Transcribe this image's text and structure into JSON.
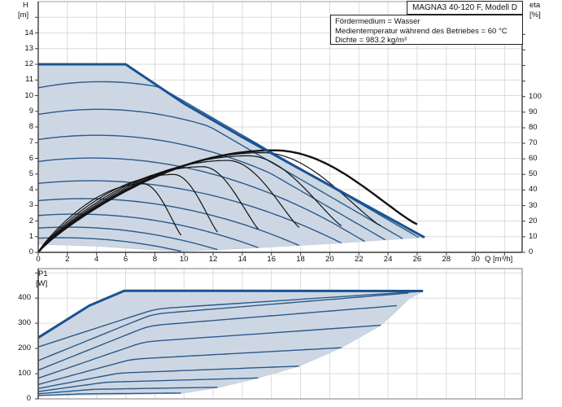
{
  "header": {
    "model_box": "MAGNA3 40-120 F, Modell D",
    "info_lines": [
      "Fördermedium = Wasser",
      "Medientemperatur während des Betriebes = 60 °C",
      "Dichte = 983.2 kg/m³"
    ]
  },
  "labels": {
    "h": "H",
    "h_unit": "[m]",
    "eta": "eta",
    "eta_unit": "[%]",
    "p1": "P1",
    "p1_unit": "[W]",
    "q_axis": "Q [m³/h]"
  },
  "colors": {
    "field_fill": "#cdd7e4",
    "field_edge": "#c2cddc",
    "curve_blue": "#2a5a8a",
    "envelope_blue": "#1a5391",
    "eta_black": "#121212",
    "grid": "#dadada",
    "axis": "#3c3c3c",
    "box_border": "#a0a0a0",
    "text": "#111111"
  },
  "chart_data": [
    {
      "type": "line",
      "title": "Q/H pump curve field with efficiency curves",
      "xlabel": "Q [m³/h]",
      "ylabel": "H [m]",
      "y2label": "eta [%]",
      "x_range": [
        0,
        33.2
      ],
      "y_range": [
        0,
        16
      ],
      "y2_range": [
        0,
        161
      ],
      "grid": true,
      "x_ticks": [
        0,
        2,
        4,
        6,
        8,
        10,
        12,
        14,
        16,
        18,
        20,
        22,
        24,
        26,
        28,
        30
      ],
      "y_ticks": [
        0,
        1,
        2,
        3,
        4,
        5,
        6,
        7,
        8,
        9,
        10,
        11,
        12,
        13,
        14
      ],
      "y2_ticks": [
        0,
        10,
        20,
        30,
        40,
        50,
        60,
        70,
        80,
        90,
        100
      ],
      "max_curve": [
        [
          0,
          12
        ],
        [
          6,
          12
        ],
        [
          10,
          9.5
        ],
        [
          14,
          7.35
        ],
        [
          18,
          5.3
        ],
        [
          22,
          3.25
        ],
        [
          26.5,
          0.95
        ]
      ],
      "field_lower_boundary": [
        [
          0,
          0.52
        ],
        [
          4,
          0.4
        ],
        [
          7,
          0.22
        ],
        [
          9.8,
          0.07
        ],
        [
          12.3,
          0.17
        ],
        [
          15.1,
          0.3
        ],
        [
          17.9,
          0.44
        ],
        [
          20.8,
          0.6
        ],
        [
          23.8,
          0.8
        ],
        [
          26.5,
          0.95
        ]
      ],
      "speed_curves": [
        {
          "h0": 10.5,
          "q_end": 26.1,
          "h_end": 0.95
        },
        {
          "h0": 8.8,
          "q_end": 25.0,
          "h_end": 0.88
        },
        {
          "h0": 7.2,
          "q_end": 23.8,
          "h_end": 0.8
        },
        {
          "h0": 5.8,
          "q_end": 22.4,
          "h_end": 0.7
        },
        {
          "h0": 4.4,
          "q_end": 20.8,
          "h_end": 0.6
        },
        {
          "h0": 3.3,
          "q_end": 17.9,
          "h_end": 0.44
        },
        {
          "h0": 2.35,
          "q_end": 15.1,
          "h_end": 0.3
        },
        {
          "h0": 1.55,
          "q_end": 12.3,
          "h_end": 0.17
        },
        {
          "h0": 0.9,
          "q_end": 9.8,
          "h_end": 0.07
        }
      ],
      "eta_curves": [
        {
          "q_peak": 7.2,
          "eta_peak": 44,
          "q_end": 9.8,
          "eta_end": 11,
          "thick": false
        },
        {
          "q_peak": 9.3,
          "eta_peak": 50,
          "q_end": 12.3,
          "eta_end": 13,
          "thick": false
        },
        {
          "q_peak": 11.3,
          "eta_peak": 55,
          "q_end": 15.1,
          "eta_end": 15,
          "thick": false
        },
        {
          "q_peak": 13.0,
          "eta_peak": 59,
          "q_end": 17.9,
          "eta_end": 16,
          "thick": false
        },
        {
          "q_peak": 14.4,
          "eta_peak": 62,
          "q_end": 20.8,
          "eta_end": 17,
          "thick": false
        },
        {
          "q_peak": 15.4,
          "eta_peak": 64,
          "q_end": 23.5,
          "eta_end": 17,
          "thick": false
        },
        {
          "q_peak": 16.2,
          "eta_peak": 65.5,
          "q_end": 26.0,
          "eta_end": 18,
          "thick": true
        }
      ]
    },
    {
      "type": "line",
      "title": "P1 power curve field",
      "xlabel": "Q [m³/h]",
      "ylabel": "P1 [W]",
      "x_range": [
        0,
        33.2
      ],
      "y_range": [
        0,
        511
      ],
      "grid": true,
      "y_ticks": [
        0,
        100,
        200,
        300,
        400
      ],
      "max_curve": [
        [
          0,
          243
        ],
        [
          3.5,
          370
        ],
        [
          5.9,
          429
        ],
        [
          26.4,
          428
        ]
      ],
      "field_lower_boundary": [
        [
          0,
          13
        ],
        [
          5,
          16
        ],
        [
          9.8,
          22
        ],
        [
          12.3,
          44
        ],
        [
          15.1,
          83
        ],
        [
          17.9,
          130
        ],
        [
          20.8,
          203
        ],
        [
          23.5,
          292
        ],
        [
          24.6,
          350
        ],
        [
          25.4,
          395
        ],
        [
          26.4,
          428
        ]
      ],
      "power_curves": [
        {
          "p0": 206,
          "q_end": 26.1,
          "p_end": 426
        },
        {
          "p0": 152,
          "q_end": 25.4,
          "p_end": 420
        },
        {
          "p0": 114,
          "q_end": 24.6,
          "p_end": 370
        },
        {
          "p0": 82,
          "q_end": 23.5,
          "p_end": 292
        },
        {
          "p0": 57,
          "q_end": 20.8,
          "p_end": 203
        },
        {
          "p0": 41,
          "q_end": 17.9,
          "p_end": 130
        },
        {
          "p0": 29,
          "q_end": 15.1,
          "p_end": 83
        },
        {
          "p0": 20,
          "q_end": 12.3,
          "p_end": 46
        },
        {
          "p0": 13,
          "q_end": 9.8,
          "p_end": 23
        }
      ]
    }
  ]
}
